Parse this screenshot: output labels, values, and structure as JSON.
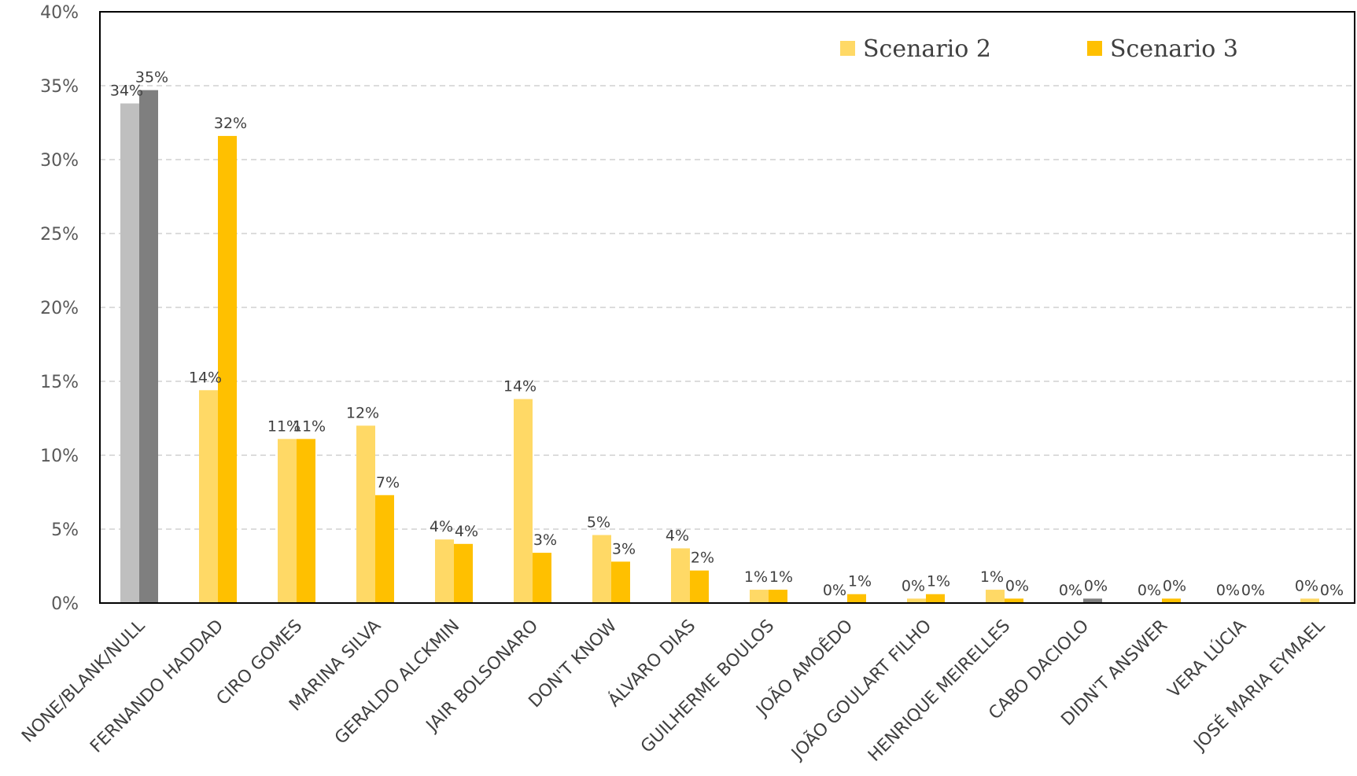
{
  "chart_data": {
    "type": "bar",
    "title": "",
    "xlabel": "",
    "ylabel": "",
    "ylim": [
      0,
      40
    ],
    "y_ticks": [
      "0%",
      "5%",
      "10%",
      "15%",
      "20%",
      "25%",
      "30%",
      "35%",
      "40%"
    ],
    "grid": "horizontal dashed",
    "legend_position": "top-right",
    "categories": [
      "NONE/BLANK/NULL",
      "FERNANDO HADDAD",
      "CIRO GOMES",
      "MARINA SILVA",
      "GERALDO ALCKMIN",
      "JAIR BOLSONARO",
      "DON'T KNOW",
      "ÁLVARO DIAS",
      "GUILHERME BOULOS",
      "JOÃO AMOÊDO",
      "JOÃO GOULART FILHO",
      "HENRIQUE MEIRELLES",
      "CABO DACIOLO",
      "DIDN'T ANSWER",
      "VERA LÚCIA",
      "JOSÉ MARIA EYMAEL"
    ],
    "series": [
      {
        "name": "Scenario 2",
        "color": "#FFD966",
        "values": [
          33.8,
          14.4,
          11.1,
          12.0,
          4.3,
          13.8,
          4.6,
          3.7,
          0.9,
          0.0,
          0.3,
          0.9,
          0.0,
          0.0,
          0.0,
          0.3
        ],
        "labels": [
          "34%",
          "14%",
          "11%",
          "12%",
          "4%",
          "14%",
          "5%",
          "4%",
          "1%",
          "0%",
          "0%",
          "1%",
          "0%",
          "0%",
          "0%",
          "0%"
        ]
      },
      {
        "name": "Scenario 3",
        "color": "#FFC000",
        "values": [
          34.7,
          31.6,
          11.1,
          7.3,
          4.0,
          3.4,
          2.8,
          2.2,
          0.9,
          0.6,
          0.6,
          0.3,
          0.3,
          0.3,
          0.0,
          0.0
        ],
        "labels": [
          "35%",
          "32%",
          "11%",
          "7%",
          "4%",
          "3%",
          "3%",
          "2%",
          "1%",
          "1%",
          "1%",
          "0%",
          "0%",
          "0%",
          "0%",
          "0%"
        ]
      }
    ],
    "highlight_colors": {
      "0": [
        "#BFBFBF",
        "#7F7F7F"
      ],
      "12": [
        null,
        "#7F7F7F"
      ]
    }
  }
}
